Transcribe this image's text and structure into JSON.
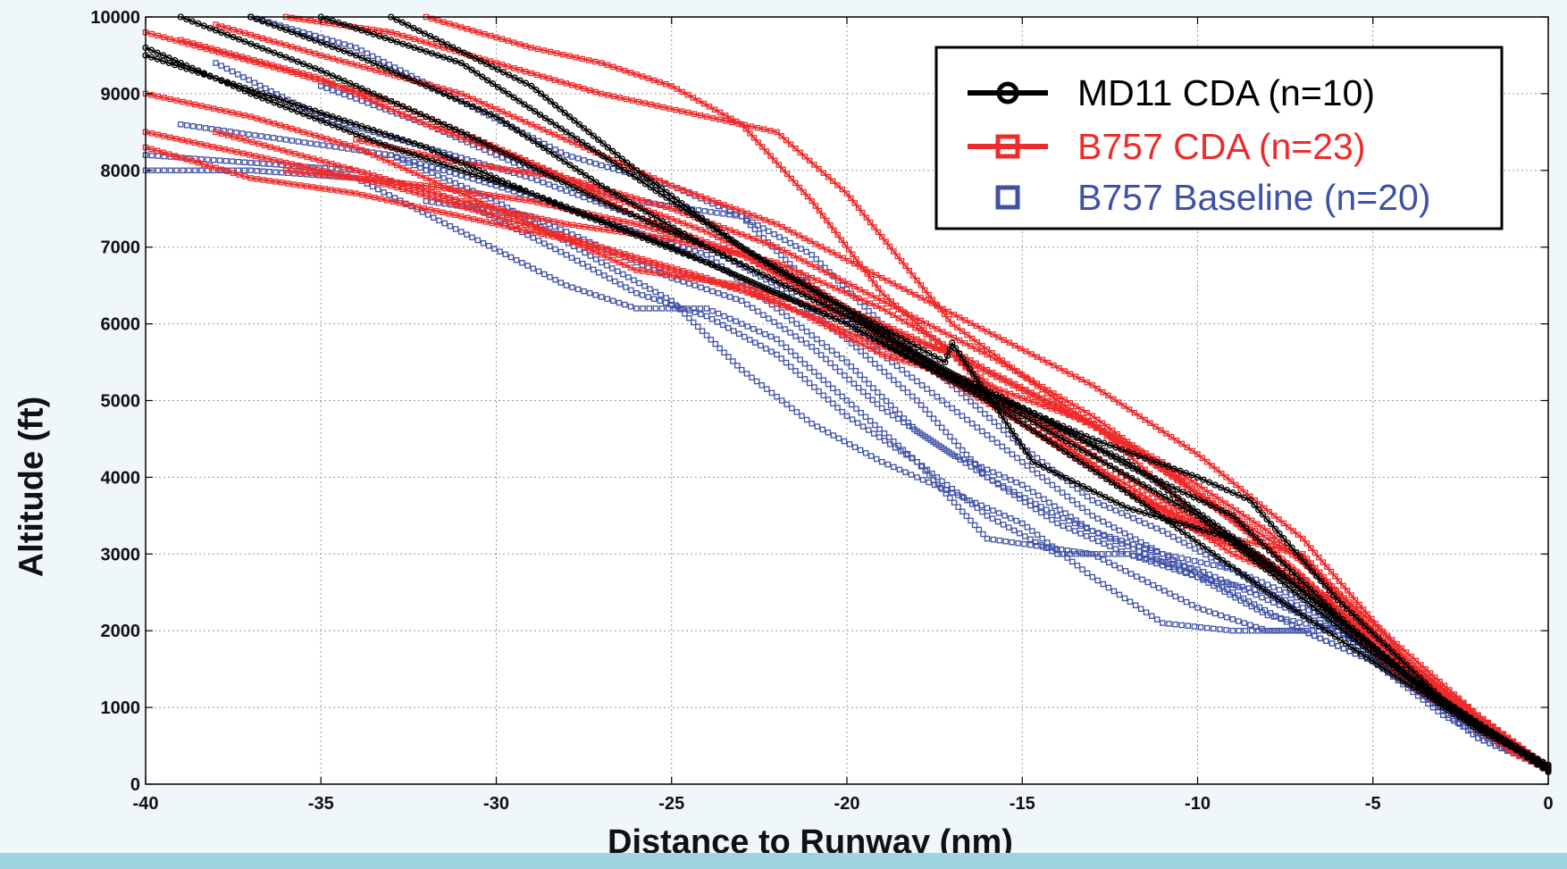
{
  "chart_data": {
    "type": "line",
    "title": "",
    "xlabel": "Distance to Runway (nm)",
    "ylabel": "Altitude (ft)",
    "xlim": [
      -40,
      0
    ],
    "ylim": [
      0,
      10000
    ],
    "x_ticks": [
      -40,
      -35,
      -30,
      -25,
      -20,
      -15,
      -10,
      -5,
      0
    ],
    "y_ticks": [
      0,
      1000,
      2000,
      3000,
      4000,
      5000,
      6000,
      7000,
      8000,
      9000,
      10000
    ],
    "grid": true,
    "legend_position": "top-right",
    "series": [
      {
        "name": "MD11 CDA (n=10)",
        "color": "#000000",
        "marker": "circle",
        "tracks": [
          {
            "x": [
              -40,
              -37,
              -33,
              -29,
              -25,
              -20,
              -15,
              -10,
              -5,
              0
            ],
            "y": [
              9600,
              9000,
              8300,
              7700,
              7000,
              6000,
              4800,
              3500,
              1700,
              180
            ]
          },
          {
            "x": [
              -39,
              -35,
              -31,
              -27,
              -24,
              -20,
              -16,
              -12,
              -8,
              -4,
              0
            ],
            "y": [
              10000,
              9300,
              8500,
              7600,
              7000,
              6100,
              5100,
              4200,
              2900,
              1400,
              200
            ]
          },
          {
            "x": [
              -37,
              -34,
              -30,
              -27,
              -24,
              -20,
              -17,
              -14.5,
              -12,
              -9,
              -6,
              -3,
              0
            ],
            "y": [
              10000,
              9500,
              8700,
              7800,
              7000,
              6100,
              5350,
              4800,
              4150,
              3500,
              2200,
              1000,
              220
            ]
          },
          {
            "x": [
              -35,
              -31,
              -28,
              -25,
              -22,
              -19,
              -17,
              -15,
              -13,
              -10,
              -8.5,
              -6,
              -3,
              0
            ],
            "y": [
              10000,
              9400,
              8500,
              7600,
              6700,
              5900,
              5300,
              4900,
              4500,
              4000,
              3700,
              2400,
              1100,
              160
            ]
          },
          {
            "x": [
              -33,
              -29,
              -26,
              -23,
              -20,
              -17.2,
              -17.0,
              -14.7,
              -12,
              -9,
              -5,
              -2,
              0
            ],
            "y": [
              10000,
              9100,
              8000,
              7000,
              6200,
              5500,
              5750,
              4200,
              3600,
              3200,
              1800,
              700,
              250
            ]
          },
          {
            "x": [
              -40,
              -36,
              -32,
              -28,
              -24,
              -20,
              -16,
              -12,
              -8,
              -4,
              0
            ],
            "y": [
              9500,
              8900,
              8300,
              7500,
              6800,
              6000,
              5000,
              3800,
              2500,
              1300,
              250
            ]
          }
        ]
      },
      {
        "name": "B757 CDA (n=23)",
        "color": "#ee2b2b",
        "marker": "square",
        "tracks": [
          {
            "x": [
              -40,
              -36,
              -33,
              -30,
              -27,
              -24,
              -21,
              -18,
              -15,
              -12,
              -9,
              -6,
              -3,
              0
            ],
            "y": [
              8500,
              8100,
              7800,
              7400,
              7000,
              6600,
              6100,
              5500,
              4700,
              3800,
              3100,
              2300,
              1100,
              180
            ]
          },
          {
            "x": [
              -40,
              -37,
              -34,
              -31,
              -28,
              -25,
              -22,
              -19,
              -16,
              -13,
              -10,
              -7,
              -4,
              0
            ],
            "y": [
              9000,
              8700,
              8300,
              7700,
              7100,
              6700,
              6300,
              5600,
              5200,
              4700,
              3800,
              2900,
              1500,
              200
            ]
          },
          {
            "x": [
              -39,
              -35,
              -32,
              -29,
              -26,
              -23,
              -20,
              -17,
              -14,
              -11,
              -8,
              -5,
              -2,
              0
            ],
            "y": [
              9700,
              9200,
              8600,
              8100,
              7400,
              6900,
              6200,
              5600,
              4900,
              4200,
              3300,
              2100,
              900,
              220
            ]
          },
          {
            "x": [
              -38,
              -35,
              -31,
              -28,
              -25,
              -22,
              -19,
              -16,
              -13,
              -10,
              -7,
              -4,
              0
            ],
            "y": [
              9900,
              9500,
              9000,
              8400,
              7800,
              7300,
              6600,
              5900,
              5200,
              4300,
              3200,
              1600,
              190
            ]
          },
          {
            "x": [
              -36,
              -33,
              -30,
              -27,
              -24,
              -22,
              -20,
              -17,
              -14,
              -11,
              -8,
              -5,
              -2,
              0
            ],
            "y": [
              10000,
              9800,
              9400,
              9000,
              8700,
              8500,
              7700,
              6000,
              5000,
              4100,
              3100,
              1900,
              800,
              170
            ]
          },
          {
            "x": [
              -32,
              -29,
              -27,
              -25,
              -23,
              -21,
              -19,
              -17,
              -15,
              -12,
              -9,
              -6,
              -3,
              0
            ],
            "y": [
              10000,
              9600,
              9400,
              9100,
              8600,
              7600,
              6400,
              5600,
              4700,
              3900,
              3000,
              2400,
              1200,
              210
            ]
          },
          {
            "x": [
              -40,
              -37,
              -34,
              -31,
              -28,
              -26,
              -23,
              -20,
              -17,
              -14,
              -11,
              -8,
              -5,
              -2,
              0
            ],
            "y": [
              8300,
              7900,
              7700,
              7400,
              7100,
              6700,
              6500,
              6100,
              5600,
              4500,
              3500,
              2900,
              1800,
              700,
              200
            ]
          },
          {
            "x": [
              -38,
              -34,
              -31,
              -28,
              -25,
              -22,
              -19,
              -16,
              -13,
              -10,
              -7,
              -4,
              0
            ],
            "y": [
              8500,
              8000,
              7600,
              7300,
              7100,
              6800,
              6200,
              5400,
              4700,
              3500,
              2600,
              1300,
              180
            ]
          },
          {
            "x": [
              -36,
              -32,
              -29,
              -26,
              -23,
              -20,
              -17,
              -14,
              -11,
              -8,
              -5,
              -2,
              0
            ],
            "y": [
              8000,
              7800,
              7600,
              7300,
              6900,
              6100,
              5300,
              4600,
              3700,
              2900,
              1900,
              800,
              230
            ]
          },
          {
            "x": [
              -40,
              -36,
              -33,
              -30,
              -27,
              -24,
              -21,
              -18,
              -15,
              -12,
              -9,
              -7,
              -4,
              -1,
              0
            ],
            "y": [
              9800,
              9300,
              8900,
              8300,
              7700,
              7200,
              6500,
              5600,
              4700,
              3800,
              3200,
              3000,
              1500,
              400,
              200
            ]
          },
          {
            "x": [
              -34,
              -31,
              -28,
              -25,
              -22,
              -19,
              -16,
              -13,
              -10,
              -7,
              -4,
              0
            ],
            "y": [
              8400,
              8100,
              7900,
              7500,
              7000,
              6300,
              5600,
              4800,
              3800,
              2700,
              1400,
              190
            ]
          }
        ]
      },
      {
        "name": "B757 Baseline (n=20)",
        "color": "#3f51a6",
        "marker": "square-open",
        "tracks": [
          {
            "x": [
              -40,
              -37,
              -34,
              -31,
              -28,
              -26,
              -24,
              -22,
              -20,
              -18,
              -16,
              -14,
              -12,
              -10,
              -8,
              -6,
              -4,
              -2,
              0
            ],
            "y": [
              8000,
              8000,
              7900,
              7200,
              6500,
              6200,
              6200,
              5800,
              5000,
              4200,
              3500,
              3000,
              3000,
              2800,
              2400,
              2000,
              1300,
              600,
              200
            ]
          },
          {
            "x": [
              -40,
              -37,
              -34,
              -31,
              -28,
              -26,
              -24,
              -22,
              -20,
              -18,
              -16,
              -13,
              -10,
              -8,
              -6,
              -4,
              -2,
              0
            ],
            "y": [
              8200,
              8100,
              8000,
              7600,
              6900,
              6400,
              6100,
              5600,
              4800,
              4200,
              3200,
              3000,
              2300,
              2000,
              2000,
              1300,
              700,
              200
            ]
          },
          {
            "x": [
              -39,
              -36,
              -33,
              -30,
              -27,
              -25,
              -23,
              -21,
              -19,
              -17,
              -15,
              -13,
              -11,
              -9,
              -7,
              -5,
              -3,
              0
            ],
            "y": [
              8600,
              8400,
              8200,
              7600,
              6800,
              6300,
              5400,
              4700,
              4200,
              3800,
              3400,
              2700,
              2100,
              2000,
              2000,
              1600,
              1000,
              200
            ]
          },
          {
            "x": [
              -38,
              -35,
              -32,
              -29,
              -26,
              -24,
              -22,
              -20,
              -18,
              -16,
              -14,
              -12,
              -10,
              -8,
              -6,
              -4,
              -2,
              0
            ],
            "y": [
              9400,
              8700,
              8300,
              7900,
              7400,
              7000,
              6500,
              5800,
              5000,
              4000,
              3500,
              3100,
              2700,
              2200,
              2000,
              1500,
              700,
              200
            ]
          },
          {
            "x": [
              -37,
              -34,
              -31,
              -28,
              -25,
              -23,
              -21,
              -19,
              -17,
              -15,
              -13,
              -11,
              -9,
              -7,
              -5,
              -3,
              0
            ],
            "y": [
              10000,
              9600,
              8900,
              8200,
              7800,
              7400,
              6500,
              5600,
              4900,
              4200,
              3500,
              3000,
              2800,
              2400,
              1700,
              1000,
              190
            ]
          },
          {
            "x": [
              -35,
              -32,
              -29,
              -26,
              -23,
              -21,
              -19,
              -17,
              -15,
              -13,
              -11,
              -9,
              -7,
              -5,
              -3,
              0
            ],
            "y": [
              9100,
              8600,
              8000,
              7600,
              7400,
              6900,
              6000,
              5200,
              4400,
              3700,
              3300,
              2800,
              2200,
              1800,
              1000,
              200
            ]
          },
          {
            "x": [
              -33,
              -30,
              -28,
              -26,
              -24,
              -22,
              -20,
              -18,
              -16,
              -14,
              -12,
              -10,
              -8,
              -6,
              -4,
              -2,
              0
            ],
            "y": [
              8200,
              7800,
              7500,
              7200,
              6900,
              6200,
              5500,
              4600,
              4000,
              3400,
              3000,
              2700,
              2500,
              2100,
              1300,
              600,
              200
            ]
          },
          {
            "x": [
              -32,
              -29,
              -27,
              -25,
              -23,
              -21,
              -19,
              -17,
              -15,
              -13,
              -11,
              -9,
              -7,
              -5,
              -3,
              0
            ],
            "y": [
              7600,
              7400,
              7000,
              6600,
              6300,
              5700,
              4900,
              4300,
              3900,
              3300,
              3000,
              2500,
              2000,
              1600,
              900,
              180
            ]
          }
        ]
      }
    ]
  }
}
